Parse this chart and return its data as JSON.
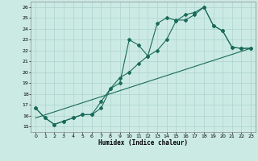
{
  "xlabel": "Humidex (Indice chaleur)",
  "bg_color": "#cceae4",
  "grid_color": "#aad4cc",
  "line_color": "#1a6b5a",
  "xlim": [
    -0.5,
    23.5
  ],
  "ylim": [
    14.5,
    26.5
  ],
  "xticks": [
    0,
    1,
    2,
    3,
    4,
    5,
    6,
    7,
    8,
    9,
    10,
    11,
    12,
    13,
    14,
    15,
    16,
    17,
    18,
    19,
    20,
    21,
    22,
    23
  ],
  "yticks": [
    15,
    16,
    17,
    18,
    19,
    20,
    21,
    22,
    23,
    24,
    25,
    26
  ],
  "line1_x": [
    0,
    1,
    2,
    3,
    4,
    5,
    6,
    7,
    8,
    9,
    10,
    11,
    12,
    13,
    14,
    15,
    16,
    17,
    18,
    19,
    20,
    21,
    22,
    23
  ],
  "line1_y": [
    16.7,
    15.8,
    15.2,
    15.5,
    15.8,
    16.1,
    16.1,
    16.7,
    18.5,
    19.0,
    23.0,
    22.5,
    21.5,
    24.5,
    25.0,
    24.8,
    24.8,
    25.3,
    26.0,
    24.3,
    23.8,
    22.3,
    22.2,
    22.2
  ],
  "line2_x": [
    0,
    1,
    2,
    3,
    4,
    5,
    6,
    7,
    8,
    9,
    10,
    11,
    12,
    13,
    14,
    15,
    16,
    17,
    18,
    19,
    20,
    21,
    22,
    23
  ],
  "line2_y": [
    16.7,
    15.8,
    15.2,
    15.5,
    15.8,
    16.1,
    16.1,
    17.3,
    18.5,
    19.5,
    20.0,
    20.8,
    21.5,
    22.0,
    23.0,
    24.7,
    25.3,
    25.5,
    26.0,
    24.3,
    23.8,
    22.3,
    22.2,
    22.2
  ],
  "line3_x": [
    0,
    23
  ],
  "line3_y": [
    15.8,
    22.2
  ],
  "markersize": 2.0,
  "linewidth": 0.8
}
